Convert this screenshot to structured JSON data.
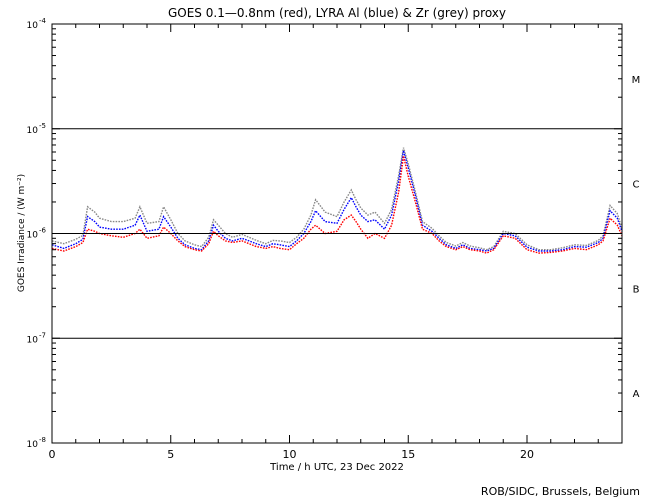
{
  "chart_data": {
    "type": "line",
    "title": "GOES 0.1—0.8nm (red), LYRA Al (blue) & Zr (grey) proxy",
    "xlabel": "Time / h UTC, 23 Dec 2022",
    "ylabel": "GOES Irradiance / (W m⁻²)",
    "xlim": [
      0,
      24
    ],
    "ylim": [
      1e-08,
      0.0001
    ],
    "yscale": "log",
    "x_ticks": [
      0,
      5,
      10,
      15,
      20
    ],
    "y_ticks": [
      {
        "value": 0.0001,
        "mant": "10",
        "exp": "-4"
      },
      {
        "value": 1e-05,
        "mant": "10",
        "exp": "-5"
      },
      {
        "value": 1e-06,
        "mant": "10",
        "exp": "-6"
      },
      {
        "value": 1e-07,
        "mant": "10",
        "exp": "-7"
      },
      {
        "value": 1e-08,
        "mant": "10",
        "exp": "-8"
      }
    ],
    "flare_classes": [
      {
        "label": "M",
        "value": 3e-05
      },
      {
        "label": "C",
        "value": 3e-06
      },
      {
        "label": "B",
        "value": 3e-07
      },
      {
        "label": "A",
        "value": 3e-08
      }
    ],
    "hlines": [
      1e-05,
      1e-06,
      1e-07
    ],
    "credit": "ROB/SIDC, Brussels, Belgium",
    "series": [
      {
        "name": "GOES 0.1-0.8nm",
        "color": "#ff0000",
        "x": [
          0,
          0.5,
          1,
          1.3,
          1.5,
          1.8,
          2,
          2.5,
          3,
          3.5,
          3.7,
          4,
          4.5,
          4.7,
          5,
          5.3,
          5.6,
          6,
          6.3,
          6.6,
          6.8,
          7,
          7.3,
          7.6,
          8,
          8.3,
          8.6,
          9,
          9.3,
          9.6,
          10,
          10.3,
          10.6,
          10.9,
          11.1,
          11.5,
          12,
          12.3,
          12.6,
          12.8,
          13,
          13.3,
          13.6,
          14,
          14.3,
          14.6,
          14.8,
          15,
          15.3,
          15.6,
          16,
          16.3,
          16.6,
          17,
          17.3,
          17.6,
          18,
          18.3,
          18.6,
          19,
          19.5,
          20,
          20.5,
          21,
          21.5,
          22,
          22.5,
          23,
          23.2,
          23.5,
          23.8,
          24
        ],
        "y": [
          7.2e-07,
          6.8e-07,
          7.5e-07,
          8.2e-07,
          1.1e-06,
          1.05e-06,
          1e-06,
          9.5e-07,
          9.2e-07,
          1e-06,
          1.1e-06,
          9e-07,
          9.5e-07,
          1.15e-06,
          1e-06,
          8.5e-07,
          7.5e-07,
          7e-07,
          6.8e-07,
          8e-07,
          1.05e-06,
          9.5e-07,
          8.5e-07,
          8.2e-07,
          8.5e-07,
          8e-07,
          7.5e-07,
          7.2e-07,
          7.5e-07,
          7.2e-07,
          7e-07,
          8e-07,
          9e-07,
          1.1e-06,
          1.2e-06,
          1e-06,
          1.05e-06,
          1.35e-06,
          1.5e-06,
          1.3e-06,
          1.1e-06,
          9e-07,
          1e-06,
          9e-07,
          1.2e-06,
          2.5e-06,
          5.5e-06,
          3.5e-06,
          2e-06,
          1.1e-06,
          1e-06,
          8.5e-07,
          7.5e-07,
          7e-07,
          7.5e-07,
          7e-07,
          6.8e-07,
          6.5e-07,
          7e-07,
          9.5e-07,
          9e-07,
          7e-07,
          6.5e-07,
          6.6e-07,
          6.8e-07,
          7.2e-07,
          7e-07,
          7.8e-07,
          8.5e-07,
          1.4e-06,
          1.2e-06,
          9.5e-07
        ]
      },
      {
        "name": "LYRA Al proxy",
        "color": "#0000ff",
        "x": [
          0,
          0.5,
          1,
          1.3,
          1.5,
          1.8,
          2,
          2.5,
          3,
          3.5,
          3.7,
          4,
          4.5,
          4.7,
          5,
          5.3,
          5.6,
          6,
          6.3,
          6.6,
          6.8,
          7,
          7.3,
          7.6,
          8,
          8.3,
          8.6,
          9,
          9.3,
          9.6,
          10,
          10.3,
          10.6,
          10.9,
          11.1,
          11.5,
          12,
          12.3,
          12.6,
          12.8,
          13,
          13.3,
          13.6,
          14,
          14.3,
          14.6,
          14.8,
          15,
          15.3,
          15.6,
          16,
          16.3,
          16.6,
          17,
          17.3,
          17.6,
          18,
          18.3,
          18.6,
          19,
          19.5,
          20,
          20.5,
          21,
          21.5,
          22,
          22.5,
          23,
          23.2,
          23.5,
          23.8,
          24
        ],
        "y": [
          7.8e-07,
          7.2e-07,
          8e-07,
          8.8e-07,
          1.45e-06,
          1.3e-06,
          1.15e-06,
          1.1e-06,
          1.1e-06,
          1.2e-06,
          1.5e-06,
          1.05e-06,
          1.1e-06,
          1.45e-06,
          1.15e-06,
          9e-07,
          7.8e-07,
          7.2e-07,
          7e-07,
          8.5e-07,
          1.2e-06,
          1.05e-06,
          9e-07,
          8.5e-07,
          9e-07,
          8.5e-07,
          8e-07,
          7.5e-07,
          8e-07,
          7.8e-07,
          7.5e-07,
          8.5e-07,
          1e-06,
          1.3e-06,
          1.65e-06,
          1.3e-06,
          1.25e-06,
          1.7e-06,
          2.2e-06,
          1.8e-06,
          1.5e-06,
          1.3e-06,
          1.35e-06,
          1.1e-06,
          1.5e-06,
          3.2e-06,
          6.2e-06,
          4.2e-06,
          2.3e-06,
          1.2e-06,
          1.05e-06,
          9e-07,
          7.8e-07,
          7.2e-07,
          7.8e-07,
          7.2e-07,
          7e-07,
          6.8e-07,
          7.2e-07,
          1e-06,
          9.5e-07,
          7.4e-07,
          6.8e-07,
          6.8e-07,
          7e-07,
          7.5e-07,
          7.4e-07,
          8.2e-07,
          9e-07,
          1.65e-06,
          1.4e-06,
          1.05e-06
        ]
      },
      {
        "name": "LYRA Zr proxy",
        "color": "#888888",
        "x": [
          0,
          0.5,
          1,
          1.3,
          1.5,
          1.8,
          2,
          2.5,
          3,
          3.5,
          3.7,
          4,
          4.5,
          4.7,
          5,
          5.3,
          5.6,
          6,
          6.3,
          6.6,
          6.8,
          7,
          7.3,
          7.6,
          8,
          8.3,
          8.6,
          9,
          9.3,
          9.6,
          10,
          10.3,
          10.6,
          10.9,
          11.1,
          11.5,
          12,
          12.3,
          12.6,
          12.8,
          13,
          13.3,
          13.6,
          14,
          14.3,
          14.6,
          14.8,
          15,
          15.3,
          15.6,
          16,
          16.3,
          16.6,
          17,
          17.3,
          17.6,
          18,
          18.3,
          18.6,
          19,
          19.5,
          20,
          20.5,
          21,
          21.5,
          22,
          22.5,
          23,
          23.2,
          23.5,
          23.8,
          24
        ],
        "y": [
          8.5e-07,
          8e-07,
          8.8e-07,
          9.6e-07,
          1.8e-06,
          1.6e-06,
          1.4e-06,
          1.3e-06,
          1.3e-06,
          1.4e-06,
          1.8e-06,
          1.25e-06,
          1.3e-06,
          1.8e-06,
          1.35e-06,
          1e-06,
          8.5e-07,
          7.8e-07,
          7.5e-07,
          9.2e-07,
          1.35e-06,
          1.2e-06,
          1e-06,
          9.2e-07,
          9.8e-07,
          9.2e-07,
          8.6e-07,
          8e-07,
          8.6e-07,
          8.5e-07,
          8.2e-07,
          9.2e-07,
          1.1e-06,
          1.5e-06,
          2.1e-06,
          1.6e-06,
          1.45e-06,
          2e-06,
          2.6e-06,
          2.1e-06,
          1.75e-06,
          1.5e-06,
          1.6e-06,
          1.25e-06,
          1.7e-06,
          3.6e-06,
          6.6e-06,
          4.6e-06,
          2.5e-06,
          1.3e-06,
          1.12e-06,
          9.5e-07,
          8.2e-07,
          7.6e-07,
          8.2e-07,
          7.6e-07,
          7.3e-07,
          7e-07,
          7.5e-07,
          1.05e-06,
          1e-06,
          7.8e-07,
          7e-07,
          7e-07,
          7.3e-07,
          7.8e-07,
          7.7e-07,
          8.6e-07,
          9.5e-07,
          1.85e-06,
          1.55e-06,
          1.12e-06
        ]
      }
    ]
  }
}
